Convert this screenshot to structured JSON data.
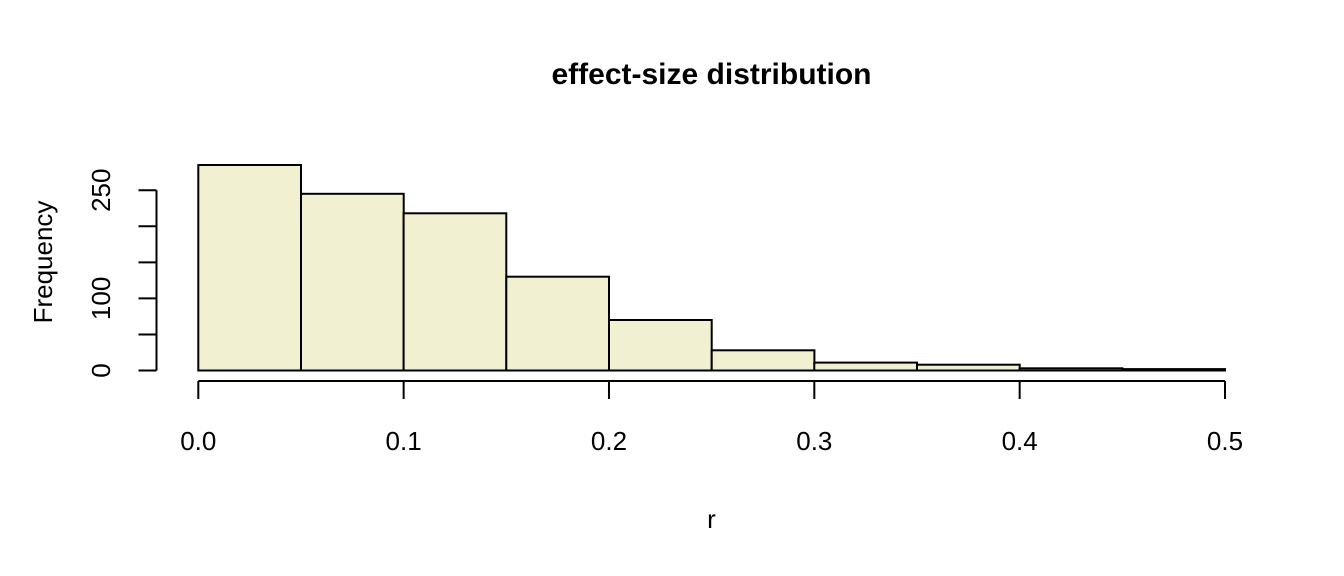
{
  "figure": {
    "background": "#ffffff",
    "text_color": "#000000"
  },
  "chart_data": {
    "type": "bar",
    "subtype": "histogram",
    "title": "effect-size distribution",
    "xlabel": "r",
    "ylabel": "Frequency",
    "bin_start": 0,
    "bin_width": 0.05,
    "bin_edges": [
      0,
      0.05,
      0.1,
      0.15,
      0.2,
      0.25,
      0.3,
      0.35,
      0.4,
      0.45,
      0.5
    ],
    "values": [
      285,
      245,
      218,
      130,
      70,
      28,
      11,
      8,
      3,
      2
    ],
    "x_ticks": [
      0,
      0.1,
      0.2,
      0.3,
      0.4,
      0.5
    ],
    "x_tick_labels": [
      "0.0",
      "0.1",
      "0.2",
      "0.3",
      "0.4",
      "0.5"
    ],
    "y_ticks": [
      0,
      50,
      100,
      150,
      200,
      250
    ],
    "y_tick_labels": [
      "0",
      "",
      "100",
      "",
      "",
      "250"
    ],
    "xlim": [
      0,
      0.5
    ],
    "ylim": [
      0,
      285
    ],
    "grid": false,
    "legend": null,
    "bar_fill": "#F1F0D0",
    "bar_stroke": "#000000",
    "axis_color": "#000000"
  }
}
